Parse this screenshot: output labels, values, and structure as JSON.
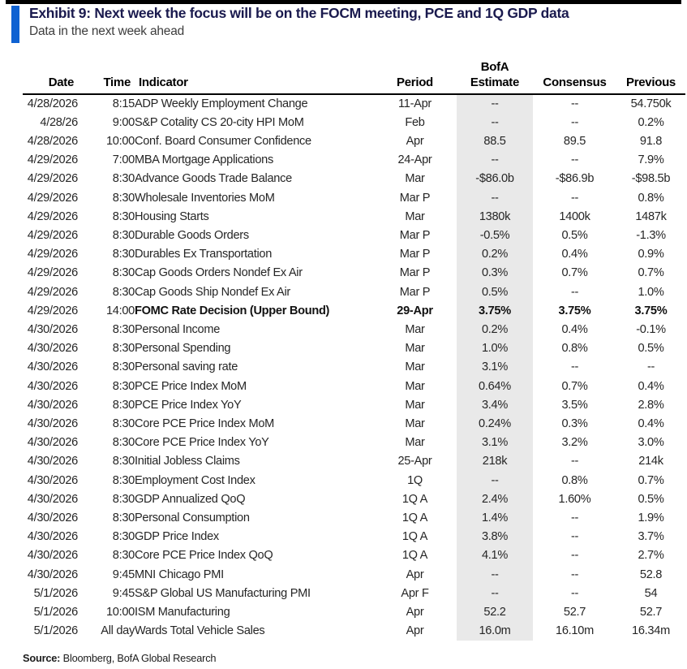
{
  "exhibit": {
    "title": "Exhibit 9: Next week the focus will be on the FOCM meeting, PCE and 1Q GDP data",
    "subtitle": "Data in the next week ahead"
  },
  "colors": {
    "top_bar": "#000000",
    "accent_blue": "#0f62d2",
    "title_text": "#1a1a4e",
    "estimate_column_shade": "#e9e9e9"
  },
  "table": {
    "header": {
      "date": "Date",
      "time": "Time",
      "indicator": "Indicator",
      "period": "Period",
      "bofa_line1": "BofA",
      "bofa_line2": "Estimate",
      "consensus": "Consensus",
      "previous": "Previous"
    },
    "rows": [
      {
        "date": "4/28/2026",
        "time": "8:15",
        "indicator": "ADP Weekly Employment Change",
        "period": "11-Apr",
        "bofa": "--",
        "consensus": "--",
        "previous": "54.750k",
        "bold": false
      },
      {
        "date": "4/28/26",
        "time": "9:00",
        "indicator": "S&P Cotality CS 20-city HPI MoM",
        "period": "Feb",
        "bofa": "--",
        "consensus": "--",
        "previous": "0.2%",
        "bold": false
      },
      {
        "date": "4/28/2026",
        "time": "10:00",
        "indicator": "Conf. Board Consumer Confidence",
        "period": "Apr",
        "bofa": "88.5",
        "consensus": "89.5",
        "previous": "91.8",
        "bold": false
      },
      {
        "date": "4/29/2026",
        "time": "7:00",
        "indicator": "MBA Mortgage Applications",
        "period": "24-Apr",
        "bofa": "--",
        "consensus": "--",
        "previous": "7.9%",
        "bold": false
      },
      {
        "date": "4/29/2026",
        "time": "8:30",
        "indicator": "Advance Goods Trade Balance",
        "period": "Mar",
        "bofa": "-$86.0b",
        "consensus": "-$86.9b",
        "previous": "-$98.5b",
        "bold": false
      },
      {
        "date": "4/29/2026",
        "time": "8:30",
        "indicator": "Wholesale Inventories MoM",
        "period": "Mar P",
        "bofa": "--",
        "consensus": "--",
        "previous": "0.8%",
        "bold": false
      },
      {
        "date": "4/29/2026",
        "time": "8:30",
        "indicator": "Housing Starts",
        "period": "Mar",
        "bofa": "1380k",
        "consensus": "1400k",
        "previous": "1487k",
        "bold": false
      },
      {
        "date": "4/29/2026",
        "time": "8:30",
        "indicator": "Durable Goods Orders",
        "period": "Mar P",
        "bofa": "-0.5%",
        "consensus": "0.5%",
        "previous": "-1.3%",
        "bold": false
      },
      {
        "date": "4/29/2026",
        "time": "8:30",
        "indicator": "Durables Ex Transportation",
        "period": "Mar P",
        "bofa": "0.2%",
        "consensus": "0.4%",
        "previous": "0.9%",
        "bold": false
      },
      {
        "date": "4/29/2026",
        "time": "8:30",
        "indicator": "Cap Goods Orders Nondef Ex Air",
        "period": "Mar P",
        "bofa": "0.3%",
        "consensus": "0.7%",
        "previous": "0.7%",
        "bold": false
      },
      {
        "date": "4/29/2026",
        "time": "8:30",
        "indicator": "Cap Goods Ship Nondef Ex Air",
        "period": "Mar P",
        "bofa": "0.5%",
        "consensus": "--",
        "previous": "1.0%",
        "bold": false
      },
      {
        "date": "4/29/2026",
        "time": "14:00",
        "indicator": "FOMC Rate Decision (Upper Bound)",
        "period": "29-Apr",
        "bofa": "3.75%",
        "consensus": "3.75%",
        "previous": "3.75%",
        "bold": true
      },
      {
        "date": "4/30/2026",
        "time": "8:30",
        "indicator": "Personal Income",
        "period": "Mar",
        "bofa": "0.2%",
        "consensus": "0.4%",
        "previous": "-0.1%",
        "bold": false
      },
      {
        "date": "4/30/2026",
        "time": "8:30",
        "indicator": "Personal Spending",
        "period": "Mar",
        "bofa": "1.0%",
        "consensus": "0.8%",
        "previous": "0.5%",
        "bold": false
      },
      {
        "date": "4/30/2026",
        "time": "8:30",
        "indicator": "Personal saving rate",
        "period": "Mar",
        "bofa": "3.1%",
        "consensus": "--",
        "previous": "--",
        "bold": false
      },
      {
        "date": "4/30/2026",
        "time": "8:30",
        "indicator": "PCE Price Index MoM",
        "period": "Mar",
        "bofa": "0.64%",
        "consensus": "0.7%",
        "previous": "0.4%",
        "bold": false
      },
      {
        "date": "4/30/2026",
        "time": "8:30",
        "indicator": "PCE Price Index YoY",
        "period": "Mar",
        "bofa": "3.4%",
        "consensus": "3.5%",
        "previous": "2.8%",
        "bold": false
      },
      {
        "date": "4/30/2026",
        "time": "8:30",
        "indicator": "Core PCE Price Index MoM",
        "period": "Mar",
        "bofa": "0.24%",
        "consensus": "0.3%",
        "previous": "0.4%",
        "bold": false
      },
      {
        "date": "4/30/2026",
        "time": "8:30",
        "indicator": "Core PCE Price Index YoY",
        "period": "Mar",
        "bofa": "3.1%",
        "consensus": "3.2%",
        "previous": "3.0%",
        "bold": false
      },
      {
        "date": "4/30/2026",
        "time": "8:30",
        "indicator": "Initial Jobless Claims",
        "period": "25-Apr",
        "bofa": "218k",
        "consensus": "--",
        "previous": "214k",
        "bold": false
      },
      {
        "date": "4/30/2026",
        "time": "8:30",
        "indicator": "Employment Cost Index",
        "period": "1Q",
        "bofa": "--",
        "consensus": "0.8%",
        "previous": "0.7%",
        "bold": false
      },
      {
        "date": "4/30/2026",
        "time": "8:30",
        "indicator": "GDP Annualized QoQ",
        "period": "1Q A",
        "bofa": "2.4%",
        "consensus": "1.60%",
        "previous": "0.5%",
        "bold": false
      },
      {
        "date": "4/30/2026",
        "time": "8:30",
        "indicator": "Personal Consumption",
        "period": "1Q A",
        "bofa": "1.4%",
        "consensus": "--",
        "previous": "1.9%",
        "bold": false
      },
      {
        "date": "4/30/2026",
        "time": "8:30",
        "indicator": "GDP Price Index",
        "period": "1Q A",
        "bofa": "3.8%",
        "consensus": "--",
        "previous": "3.7%",
        "bold": false
      },
      {
        "date": "4/30/2026",
        "time": "8:30",
        "indicator": "Core PCE Price Index QoQ",
        "period": "1Q A",
        "bofa": "4.1%",
        "consensus": "--",
        "previous": "2.7%",
        "bold": false
      },
      {
        "date": "4/30/2026",
        "time": "9:45",
        "indicator": "MNI Chicago PMI",
        "period": "Apr",
        "bofa": "--",
        "consensus": "--",
        "previous": "52.8",
        "bold": false
      },
      {
        "date": "5/1/2026",
        "time": "9:45",
        "indicator": "S&P Global US Manufacturing PMI",
        "period": "Apr F",
        "bofa": "--",
        "consensus": "--",
        "previous": "54",
        "bold": false
      },
      {
        "date": "5/1/2026",
        "time": "10:00",
        "indicator": "ISM Manufacturing",
        "period": "Apr",
        "bofa": "52.2",
        "consensus": "52.7",
        "previous": "52.7",
        "bold": false
      },
      {
        "date": "5/1/2026",
        "time": "All day",
        "indicator": "Wards Total Vehicle Sales",
        "period": "Apr",
        "bofa": "16.0m",
        "consensus": "16.10m",
        "previous": "16.34m",
        "bold": false
      }
    ]
  },
  "footer": {
    "source_label": "Source:",
    "source_text": " Bloomberg, BofA Global Research"
  }
}
